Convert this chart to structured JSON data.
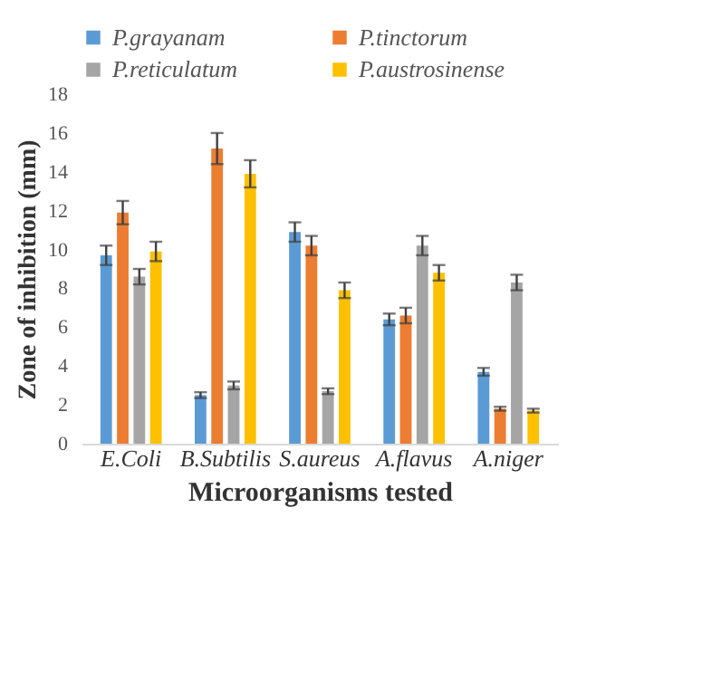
{
  "chart_data": {
    "type": "bar",
    "xlabel": "Microorganisms tested",
    "ylabel": "Zone of inhibition  (mm)",
    "categories": [
      "E.Coli",
      "B.Subtilis",
      "S.aureus",
      "A.flavus",
      "A.niger"
    ],
    "series": [
      {
        "name": "P.grayanam",
        "color": "#5b9bd5",
        "values": [
          9.7,
          2.5,
          10.9,
          6.4,
          3.7
        ],
        "errors": [
          0.5,
          0.15,
          0.5,
          0.3,
          0.2
        ]
      },
      {
        "name": "P.tinctorum",
        "color": "#ed7d31",
        "values": [
          11.9,
          15.2,
          10.2,
          6.6,
          1.8
        ],
        "errors": [
          0.6,
          0.8,
          0.5,
          0.4,
          0.1
        ]
      },
      {
        "name": "P.reticulatum",
        "color": "#a5a5a5",
        "values": [
          8.6,
          3.0,
          2.7,
          10.2,
          8.3
        ],
        "errors": [
          0.4,
          0.2,
          0.15,
          0.5,
          0.4
        ]
      },
      {
        "name": "P.austrosinense",
        "color": "#ffc000",
        "values": [
          9.9,
          13.9,
          7.9,
          8.8,
          1.7
        ],
        "errors": [
          0.5,
          0.7,
          0.4,
          0.4,
          0.1
        ]
      }
    ],
    "ylim": [
      0,
      18
    ],
    "yticks": [
      0,
      2,
      4,
      6,
      8,
      10,
      12,
      14,
      16,
      18
    ],
    "grid": false,
    "legend": "top"
  }
}
